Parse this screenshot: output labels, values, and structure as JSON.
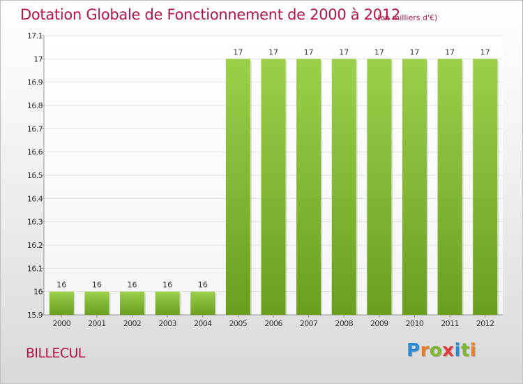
{
  "header": {
    "title": "Dotation Globale de Fonctionnement de 2000 à 2012",
    "unit": "(en milliers d'€)"
  },
  "footer": {
    "commune": "BILLECUL",
    "logo": "Proxiti"
  },
  "chart_data": {
    "type": "bar",
    "title": "Dotation Globale de Fonctionnement de 2000 à 2012",
    "subtitle": "(en milliers d'€)",
    "categories": [
      "2000",
      "2001",
      "2002",
      "2003",
      "2004",
      "2005",
      "2006",
      "2007",
      "2008",
      "2009",
      "2010",
      "2011",
      "2012"
    ],
    "values": [
      16,
      16,
      16,
      16,
      16,
      17,
      17,
      17,
      17,
      17,
      17,
      17,
      17
    ],
    "data_labels": [
      "16",
      "16",
      "16",
      "16",
      "16",
      "17",
      "17",
      "17",
      "17",
      "17",
      "17",
      "17",
      "17"
    ],
    "ylim": [
      15.9,
      17.1
    ],
    "yticks": [
      15.9,
      16,
      16.1,
      16.2,
      16.3,
      16.4,
      16.5,
      16.6,
      16.7,
      16.8,
      16.9,
      17,
      17.1
    ],
    "ytick_labels": [
      "15.9",
      "16",
      "16.1",
      "16.2",
      "16.3",
      "16.4",
      "16.5",
      "16.6",
      "16.7",
      "16.8",
      "16.9",
      "17",
      "17.1"
    ],
    "xlabel": "",
    "ylabel": "",
    "grid": true,
    "colors": {
      "bar_top": "#9ccf4a",
      "bar_bottom": "#6a9f1e",
      "grid": "#e2e2e2",
      "axis": "#999999",
      "text_accent": "#b5124a"
    }
  }
}
